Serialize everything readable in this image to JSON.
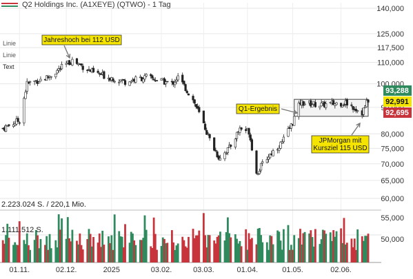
{
  "header": {
    "title": "Q2 Holdings Inc. (A1XEYE) (QTWO) - 1 Tag"
  },
  "indicators": [
    "Linie",
    "Linie",
    "Text"
  ],
  "volume_labels": [
    "2.223.024 S. / 220,1 Mio.",
    "1.111.512 S."
  ],
  "annotations": {
    "high": "Jahreshoch bei 112 USD",
    "q1": "Q1-Ergebnis",
    "jpm": "JPMorgan mit\nKursziel 115 USD"
  },
  "price_badges": [
    "93,288",
    "92,991",
    "92,695"
  ],
  "colors": {
    "up": "#2f8a5d",
    "down": "#c8343c",
    "badge_top": "#2f8a5d",
    "badge_mid": "#f5e400",
    "badge_bottom": "#c8343c",
    "annotation_bg": "#f5e400"
  },
  "chart_data": {
    "type": "candlestick",
    "title": "Q2 Holdings Inc. (A1XEYE) (QTWO) - 1 Tag",
    "price_axis_ticks": [
      "140,000",
      "125,000",
      "117,500",
      "110,000",
      "100,000",
      "90,000",
      "80,000",
      "75,000",
      "70,000",
      "65,000",
      "60,000"
    ],
    "price_axis_values": [
      140000,
      125000,
      117500,
      110000,
      100000,
      90000,
      80000,
      75000,
      70000,
      65000,
      60000
    ],
    "price_scale": "log",
    "volume_axis_ticks": [
      "55,000",
      "50,000"
    ],
    "x_tick_labels": [
      "01.11.",
      "02.12.",
      "2025",
      "03.02.",
      "03.03.",
      "01.04.",
      "01.05.",
      "02.06."
    ],
    "grid": true,
    "price_anchor_points": [
      {
        "date": "2024-10-21",
        "close": 82
      },
      {
        "date": "2024-11-01",
        "close": 85
      },
      {
        "date": "2024-11-06",
        "close": 100
      },
      {
        "date": "2024-11-20",
        "close": 103
      },
      {
        "date": "2024-12-06",
        "close": 111
      },
      {
        "date": "2024-12-20",
        "close": 105
      },
      {
        "date": "2025-01-10",
        "close": 101
      },
      {
        "date": "2025-01-24",
        "close": 103
      },
      {
        "date": "2025-02-10",
        "close": 100
      },
      {
        "date": "2025-02-14",
        "close": 103
      },
      {
        "date": "2025-02-24",
        "close": 93
      },
      {
        "date": "2025-03-07",
        "close": 78
      },
      {
        "date": "2025-03-13",
        "close": 72
      },
      {
        "date": "2025-03-20",
        "close": 75
      },
      {
        "date": "2025-03-27",
        "close": 82
      },
      {
        "date": "2025-04-02",
        "close": 81
      },
      {
        "date": "2025-04-07",
        "close": 67
      },
      {
        "date": "2025-04-14",
        "close": 72
      },
      {
        "date": "2025-04-24",
        "close": 77
      },
      {
        "date": "2025-04-30",
        "close": 83
      },
      {
        "date": "2025-05-06",
        "close": 92
      },
      {
        "date": "2025-05-20",
        "close": 91
      },
      {
        "date": "2025-06-05",
        "close": 92
      },
      {
        "date": "2025-06-16",
        "close": 88
      },
      {
        "date": "2025-06-20",
        "close": 93
      }
    ],
    "range_box": {
      "from": "2025-05-02",
      "to": "2025-06-20",
      "low": 86.5,
      "high": 93.3
    },
    "last_prices": [
      93.288,
      92.991,
      92.695
    ]
  }
}
